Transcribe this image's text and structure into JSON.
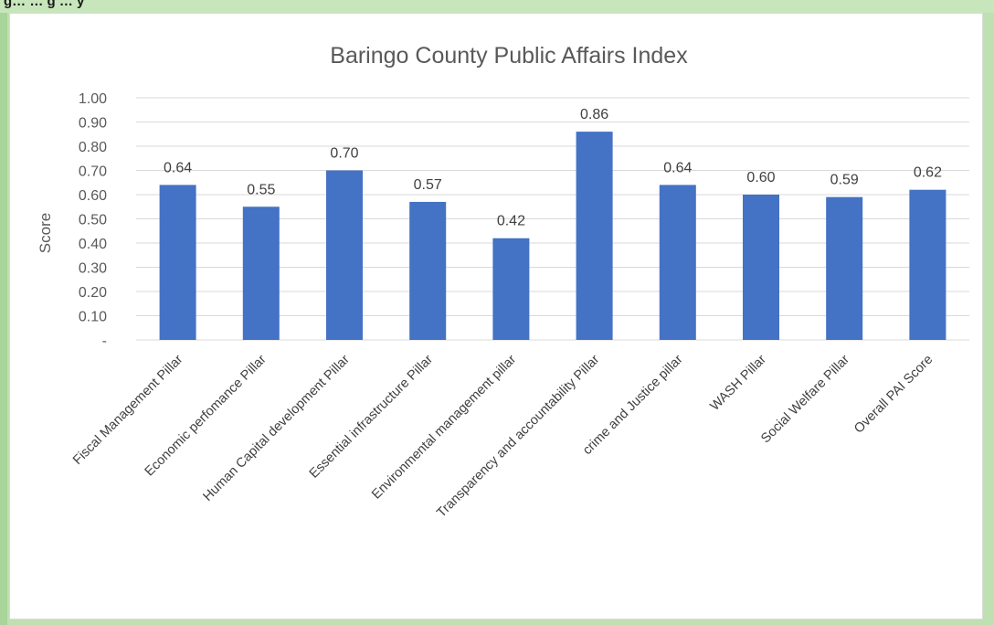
{
  "page": {
    "caption_fragment": "g… … g … y"
  },
  "chart_data": {
    "type": "bar",
    "title": "Baringo County Public Affairs Index",
    "xlabel": "",
    "ylabel": "Score",
    "ylim": [
      0,
      1.0
    ],
    "yticks": [
      "-",
      "0.10",
      "0.20",
      "0.30",
      "0.40",
      "0.50",
      "0.60",
      "0.70",
      "0.80",
      "0.90",
      "1.00"
    ],
    "gridlines": true,
    "bar_color": "#4472c4",
    "categories": [
      "Fiscal Management Pillar",
      "Economic perfomance Pillar",
      "Human Capital development Pillar",
      "Essential infrastructure Pillar",
      "Environmental management pillar",
      "Transparency and accountability Pillar",
      "crime and Justice pillar",
      "WASH Pillar",
      "Social Welfare Pillar",
      "Overall PAI Score"
    ],
    "values": [
      0.64,
      0.55,
      0.7,
      0.57,
      0.42,
      0.86,
      0.64,
      0.6,
      0.59,
      0.62
    ],
    "data_labels": [
      "0.64",
      "0.55",
      "0.70",
      "0.57",
      "0.42",
      "0.86",
      "0.64",
      "0.60",
      "0.59",
      "0.62"
    ]
  }
}
